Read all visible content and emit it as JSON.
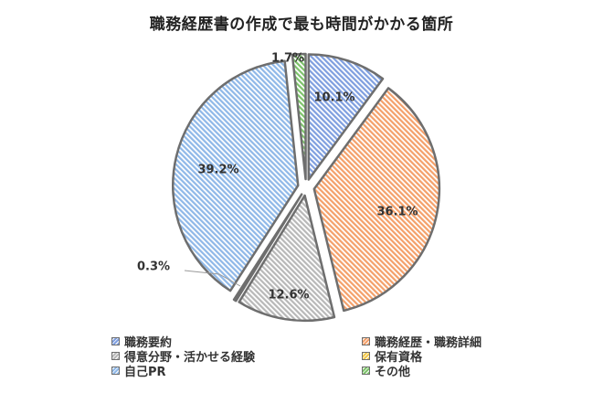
{
  "chart_data": {
    "type": "pie",
    "title": "職務経歴書の作成で最も時間がかかる箇所",
    "slices": [
      {
        "label": "職務要約",
        "value": 10.1,
        "display": "10.1%",
        "color": "#7f9fdf"
      },
      {
        "label": "職務経歴・職務詳細",
        "value": 36.1,
        "display": "36.1%",
        "color": "#f4a06a"
      },
      {
        "label": "得意分野・活かせる経験",
        "value": 12.6,
        "display": "12.6%",
        "color": "#b8b8b8"
      },
      {
        "label": "保有資格",
        "value": 0.3,
        "display": "0.3%",
        "color": "#f2c84b"
      },
      {
        "label": "自己PR",
        "value": 39.2,
        "display": "39.2%",
        "color": "#8fb8e8"
      },
      {
        "label": "その他",
        "value": 1.7,
        "display": "1.7%",
        "color": "#7dc36a"
      }
    ],
    "legend_position": "bottom",
    "exploded": true
  }
}
